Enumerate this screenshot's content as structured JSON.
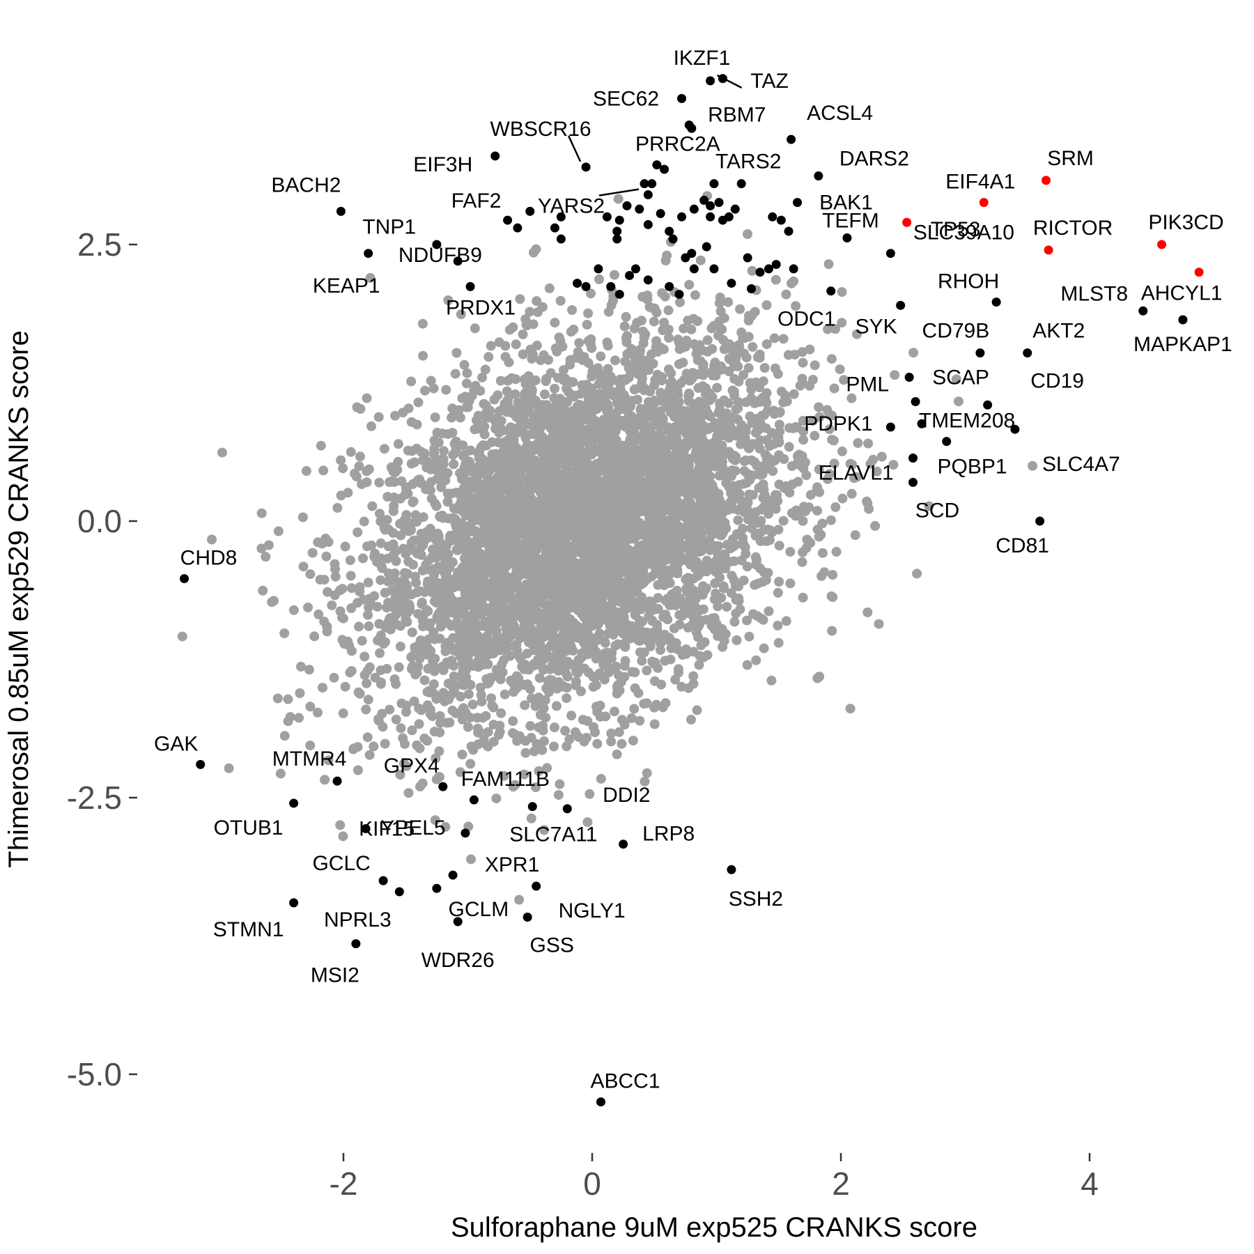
{
  "chart_data": {
    "type": "scatter",
    "title": "",
    "xlabel": "Sulforaphane 9uM exp525 CRANKS score",
    "ylabel": "Thimerosal 0.85uM exp529 CRANKS score",
    "xlim": [
      -3.6,
      5.0
    ],
    "ylim": [
      -5.7,
      4.3
    ],
    "xticks": [
      -2,
      0,
      2,
      4
    ],
    "xtick_labels": [
      "-2",
      "0",
      "2",
      "4"
    ],
    "yticks": [
      2.5,
      0.0,
      -2.5,
      -5.0
    ],
    "ytick_labels": [
      "2.5",
      "0.0",
      "-2.5",
      "-5.0"
    ],
    "grid": false,
    "legend": false,
    "colors": {
      "background_points": "#a0a0a0",
      "highlight": "#000000",
      "emphasis": "#ff0000"
    },
    "background_cloud": {
      "center_x": -0.1,
      "center_y": -0.05,
      "sd_x": 0.85,
      "sd_y": 0.85,
      "correlation": 0.35,
      "count": 5000
    },
    "labeled_genes": [
      {
        "label": "IKZF1",
        "x": 1.05,
        "y": 4.0,
        "color": "black"
      },
      {
        "label": "TAZ",
        "x": 0.95,
        "y": 3.98,
        "color": "black"
      },
      {
        "label": "SEC62",
        "x": 0.72,
        "y": 3.82,
        "color": "black"
      },
      {
        "label": "RBM7",
        "x": 0.8,
        "y": 3.55,
        "color": "black"
      },
      {
        "label": "ACSL4",
        "x": 1.6,
        "y": 3.45,
        "color": "black"
      },
      {
        "label": "WBSCR16",
        "x": -0.05,
        "y": 3.2,
        "color": "black"
      },
      {
        "label": "EIF3H",
        "x": -0.78,
        "y": 3.3,
        "color": "black"
      },
      {
        "label": "PRRC2A",
        "x": 0.52,
        "y": 3.22,
        "color": "black"
      },
      {
        "label": "TARS2",
        "x": 1.2,
        "y": 3.05,
        "color": "black"
      },
      {
        "label": "DARS2",
        "x": 1.82,
        "y": 3.12,
        "color": "black"
      },
      {
        "label": "YARS2",
        "x": 0.42,
        "y": 3.05,
        "color": "black"
      },
      {
        "label": "SRM",
        "x": 3.65,
        "y": 3.08,
        "color": "red"
      },
      {
        "label": "EIF4A1",
        "x": 3.15,
        "y": 2.88,
        "color": "red"
      },
      {
        "label": "BACH2",
        "x": -2.02,
        "y": 2.8,
        "color": "black"
      },
      {
        "label": "FAF2",
        "x": -0.68,
        "y": 2.72,
        "color": "black"
      },
      {
        "label": "BAK1",
        "x": 1.65,
        "y": 2.88,
        "color": "black"
      },
      {
        "label": "TP53",
        "x": 2.53,
        "y": 2.7,
        "color": "red"
      },
      {
        "label": "RICTOR",
        "x": 3.67,
        "y": 2.45,
        "color": "red"
      },
      {
        "label": "PIK3CD",
        "x": 4.58,
        "y": 2.5,
        "color": "red"
      },
      {
        "label": "TNP1",
        "x": -1.8,
        "y": 2.42,
        "color": "black"
      },
      {
        "label": "NDUFB9",
        "x": -1.25,
        "y": 2.5,
        "color": "black"
      },
      {
        "label": "TEFM",
        "x": 2.05,
        "y": 2.56,
        "color": "black"
      },
      {
        "label": "AHCYL1",
        "x": 4.88,
        "y": 2.25,
        "color": "red"
      },
      {
        "label": "KEAP1",
        "x": -1.08,
        "y": 2.35,
        "color": "black"
      },
      {
        "label": "SLC39A10",
        "x": 2.4,
        "y": 2.42,
        "color": "black"
      },
      {
        "label": "PRDX1",
        "x": -0.98,
        "y": 2.12,
        "color": "black"
      },
      {
        "label": "ODC1",
        "x": 1.92,
        "y": 2.08,
        "color": "black"
      },
      {
        "label": "RHOH",
        "x": 3.25,
        "y": 1.98,
        "color": "black"
      },
      {
        "label": "MLST8",
        "x": 4.43,
        "y": 1.9,
        "color": "black"
      },
      {
        "label": "MAPKAP1",
        "x": 4.75,
        "y": 1.82,
        "color": "black"
      },
      {
        "label": "SYK",
        "x": 2.48,
        "y": 1.95,
        "color": "black"
      },
      {
        "label": "CD79B",
        "x": 3.12,
        "y": 1.52,
        "color": "black"
      },
      {
        "label": "AKT2",
        "x": 3.5,
        "y": 1.52,
        "color": "black"
      },
      {
        "label": "PML",
        "x": 2.55,
        "y": 1.3,
        "color": "black"
      },
      {
        "label": "SCAP",
        "x": 2.6,
        "y": 1.08,
        "color": "black"
      },
      {
        "label": "CD19",
        "x": 3.18,
        "y": 1.05,
        "color": "black"
      },
      {
        "label": "PDPK1",
        "x": 2.4,
        "y": 0.85,
        "color": "black"
      },
      {
        "label": "TMEM208",
        "x": 2.65,
        "y": 0.88,
        "color": "black"
      },
      {
        "label": "SLC4A7",
        "x": 3.4,
        "y": 0.83,
        "color": "black"
      },
      {
        "label": "ELAVL1",
        "x": 2.85,
        "y": 0.72,
        "color": "black"
      },
      {
        "label": "PQBP1",
        "x": 2.58,
        "y": 0.57,
        "color": "black"
      },
      {
        "label": "SCD",
        "x": 2.58,
        "y": 0.35,
        "color": "black"
      },
      {
        "label": "CD81",
        "x": 3.6,
        "y": 0.0,
        "color": "black"
      },
      {
        "label": "CHD8",
        "x": -3.28,
        "y": -0.52,
        "color": "black"
      },
      {
        "label": "GAK",
        "x": -3.15,
        "y": -2.2,
        "color": "black"
      },
      {
        "label": "MTMR4",
        "x": -2.05,
        "y": -2.35,
        "color": "black"
      },
      {
        "label": "OTUB1",
        "x": -2.4,
        "y": -2.55,
        "color": "black"
      },
      {
        "label": "GPX4",
        "x": -1.2,
        "y": -2.4,
        "color": "black"
      },
      {
        "label": "KIF15",
        "x": -1.82,
        "y": -2.78,
        "color": "black"
      },
      {
        "label": "FAM111B",
        "x": -0.95,
        "y": -2.52,
        "color": "black"
      },
      {
        "label": "YPEL5",
        "x": -1.02,
        "y": -2.82,
        "color": "black"
      },
      {
        "label": "SLC7A11",
        "x": -0.48,
        "y": -2.58,
        "color": "black"
      },
      {
        "label": "DDI2",
        "x": -0.2,
        "y": -2.6,
        "color": "black"
      },
      {
        "label": "LRP8",
        "x": 0.25,
        "y": -2.92,
        "color": "black"
      },
      {
        "label": "XPR1",
        "x": -1.12,
        "y": -3.2,
        "color": "black"
      },
      {
        "label": "GCLC",
        "x": -1.68,
        "y": -3.25,
        "color": "black"
      },
      {
        "label": "NPRL3",
        "x": -1.55,
        "y": -3.35,
        "color": "black"
      },
      {
        "label": "GCLM",
        "x": -1.25,
        "y": -3.32,
        "color": "black"
      },
      {
        "label": "NGLY1",
        "x": -0.45,
        "y": -3.3,
        "color": "black"
      },
      {
        "label": "SSH2",
        "x": 1.12,
        "y": -3.15,
        "color": "black"
      },
      {
        "label": "STMN1",
        "x": -2.4,
        "y": -3.45,
        "color": "black"
      },
      {
        "label": "WDR26",
        "x": -1.08,
        "y": -3.62,
        "color": "black"
      },
      {
        "label": "GSS",
        "x": -0.52,
        "y": -3.58,
        "color": "black"
      },
      {
        "label": "MSI2",
        "x": -1.9,
        "y": -3.82,
        "color": "black"
      },
      {
        "label": "ABCC1",
        "x": 0.07,
        "y": -5.25,
        "color": "black"
      }
    ],
    "extra_highlight_points": [
      {
        "x": -0.5,
        "y": 2.8
      },
      {
        "x": -0.6,
        "y": 2.65
      },
      {
        "x": -0.3,
        "y": 2.65
      },
      {
        "x": -0.25,
        "y": 2.75
      },
      {
        "x": -0.25,
        "y": 2.55
      },
      {
        "x": 0.12,
        "y": 2.75
      },
      {
        "x": 0.22,
        "y": 2.72
      },
      {
        "x": 0.28,
        "y": 2.85
      },
      {
        "x": 0.38,
        "y": 2.82
      },
      {
        "x": 0.45,
        "y": 2.68
      },
      {
        "x": 0.55,
        "y": 2.78
      },
      {
        "x": 0.65,
        "y": 2.55
      },
      {
        "x": 0.72,
        "y": 2.75
      },
      {
        "x": 0.82,
        "y": 2.82
      },
      {
        "x": 0.9,
        "y": 2.9
      },
      {
        "x": 0.95,
        "y": 2.75
      },
      {
        "x": 1.05,
        "y": 2.72
      },
      {
        "x": 1.15,
        "y": 2.82
      },
      {
        "x": 0.2,
        "y": 2.55
      },
      {
        "x": 0.2,
        "y": 2.62
      },
      {
        "x": 0.62,
        "y": 2.62
      },
      {
        "x": 0.92,
        "y": 2.48
      },
      {
        "x": 1.1,
        "y": 2.75
      },
      {
        "x": 1.45,
        "y": 2.75
      },
      {
        "x": 1.52,
        "y": 2.72
      },
      {
        "x": 1.58,
        "y": 2.62
      },
      {
        "x": 1.25,
        "y": 2.38
      },
      {
        "x": 1.42,
        "y": 2.28
      },
      {
        "x": 1.48,
        "y": 2.32
      },
      {
        "x": 1.62,
        "y": 2.28
      },
      {
        "x": 0.05,
        "y": 2.28
      },
      {
        "x": 0.15,
        "y": 2.12
      },
      {
        "x": 0.35,
        "y": 2.28
      },
      {
        "x": 0.45,
        "y": 2.18
      },
      {
        "x": 0.62,
        "y": 2.12
      },
      {
        "x": 0.75,
        "y": 2.38
      },
      {
        "x": 0.82,
        "y": 2.28
      },
      {
        "x": 0.98,
        "y": 2.28
      },
      {
        "x": 1.12,
        "y": 2.15
      },
      {
        "x": -0.12,
        "y": 2.15
      },
      {
        "x": -0.05,
        "y": 2.12
      },
      {
        "x": 0.3,
        "y": 2.22
      },
      {
        "x": 0.8,
        "y": 2.42
      },
      {
        "x": 1.28,
        "y": 2.1
      },
      {
        "x": 0.7,
        "y": 2.05
      },
      {
        "x": 0.22,
        "y": 2.05
      },
      {
        "x": 1.35,
        "y": 2.25
      },
      {
        "x": 0.48,
        "y": 3.05
      },
      {
        "x": 0.58,
        "y": 3.18
      },
      {
        "x": 0.78,
        "y": 3.58
      },
      {
        "x": 0.98,
        "y": 3.05
      },
      {
        "x": 0.95,
        "y": 2.85
      },
      {
        "x": 1.02,
        "y": 2.88
      },
      {
        "x": 0.45,
        "y": 2.95
      }
    ]
  }
}
